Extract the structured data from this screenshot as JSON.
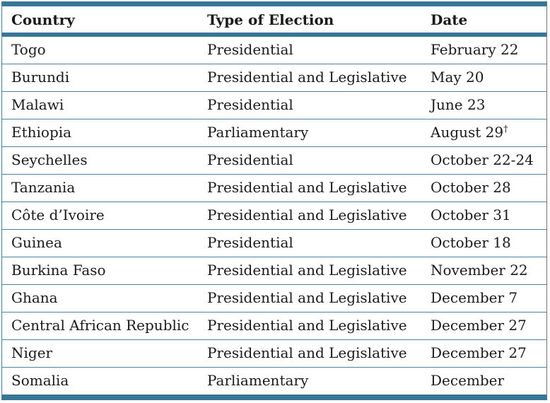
{
  "colors": {
    "accent": "#377696",
    "divider": "#4a84a2",
    "text": "#1a1a1a",
    "background": "#ffffff"
  },
  "chart_data": {
    "type": "table",
    "columns": [
      "Country",
      "Type of Election",
      "Date"
    ],
    "rows": [
      {
        "country": "Togo",
        "type": "Presidential",
        "date": "February 22",
        "note": ""
      },
      {
        "country": "Burundi",
        "type": "Presidential and Legislative",
        "date": "May 20",
        "note": ""
      },
      {
        "country": "Malawi",
        "type": "Presidential",
        "date": "June 23",
        "note": ""
      },
      {
        "country": "Ethiopia",
        "type": "Parliamentary",
        "date": "August 29",
        "note": "†"
      },
      {
        "country": "Seychelles",
        "type": "Presidential",
        "date": "October 22-24",
        "note": ""
      },
      {
        "country": "Tanzania",
        "type": "Presidential and Legislative",
        "date": "October 28",
        "note": ""
      },
      {
        "country": "Côte d’Ivoire",
        "type": "Presidential and Legislative",
        "date": "October 31",
        "note": ""
      },
      {
        "country": "Guinea",
        "type": "Presidential",
        "date": "October 18",
        "note": ""
      },
      {
        "country": "Burkina Faso",
        "type": "Presidential and Legislative",
        "date": "November 22",
        "note": ""
      },
      {
        "country": "Ghana",
        "type": "Presidential and Legislative",
        "date": "December 7",
        "note": ""
      },
      {
        "country": "Central African Republic",
        "type": "Presidential and Legislative",
        "date": "December 27",
        "note": ""
      },
      {
        "country": "Niger",
        "type": "Presidential and Legislative",
        "date": "December 27",
        "note": ""
      },
      {
        "country": "Somalia",
        "type": "Parliamentary",
        "date": "December",
        "note": ""
      }
    ]
  }
}
